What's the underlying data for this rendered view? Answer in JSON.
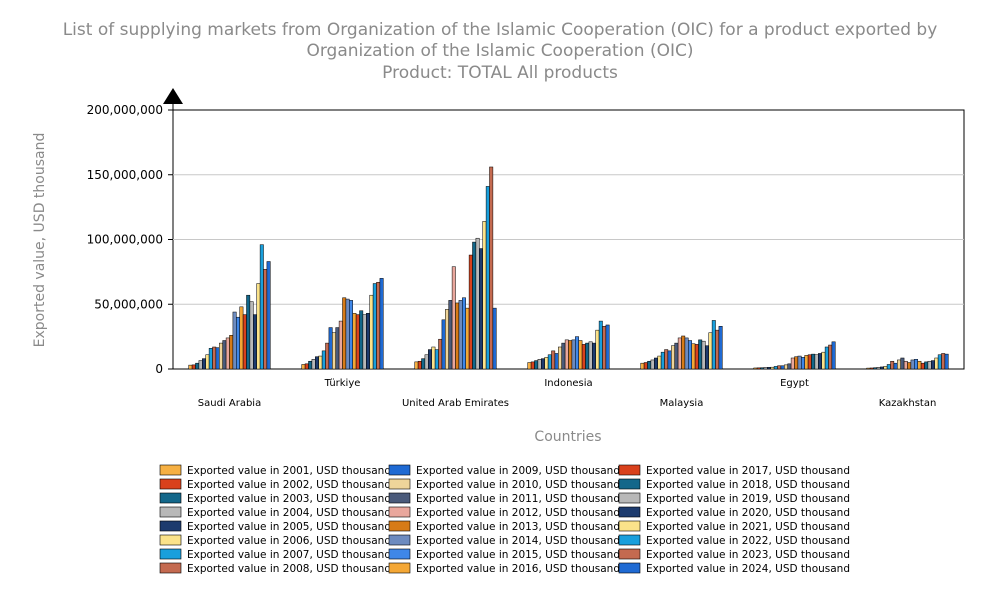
{
  "chart_data": {
    "type": "bar",
    "title_lines": [
      "List of supplying markets from Organization of the Islamic Cooperation (OIC) for a product exported by",
      "Organization of the Islamic Cooperation (OIC)",
      "Product: TOTAL All products"
    ],
    "xlabel": "Countries",
    "ylabel": "Exported value, USD thousand",
    "ylim": [
      0,
      200000000
    ],
    "yticks": [
      "0",
      "50,000,000",
      "100,000,000",
      "150,000,000",
      "200,000,000"
    ],
    "ytick_values": [
      0,
      50000000,
      100000000,
      150000000,
      200000000
    ],
    "grid": true,
    "legend_position": "bottom",
    "categories": [
      "Saudi Arabia",
      "Türkiye",
      "United Arab Emirates",
      "Indonesia",
      "Malaysia",
      "Egypt",
      "Kazakhstan"
    ],
    "series": [
      {
        "name": "Exported value in 2001, USD thousand",
        "color": "#f6b043",
        "values": [
          3000000,
          3500000,
          5500000,
          5000000,
          4500000,
          800000,
          700000
        ]
      },
      {
        "name": "Exported value in 2002, USD thousand",
        "color": "#d9411c",
        "values": [
          3200000,
          4000000,
          6000000,
          5500000,
          5000000,
          900000,
          800000
        ]
      },
      {
        "name": "Exported value in 2003, USD thousand",
        "color": "#13678a",
        "values": [
          4500000,
          6000000,
          8000000,
          6500000,
          6000000,
          1000000,
          1000000
        ]
      },
      {
        "name": "Exported value in 2004, USD thousand",
        "color": "#b8b8b8",
        "values": [
          6500000,
          7500000,
          11000000,
          7500000,
          7000000,
          1200000,
          1300000
        ]
      },
      {
        "name": "Exported value in 2005, USD thousand",
        "color": "#1d3b6e",
        "values": [
          8000000,
          9500000,
          15000000,
          8000000,
          8500000,
          1300000,
          1600000
        ]
      },
      {
        "name": "Exported value in 2006, USD thousand",
        "color": "#fbe38a",
        "values": [
          11000000,
          10000000,
          17000000,
          9000000,
          10000000,
          1400000,
          2000000
        ]
      },
      {
        "name": "Exported value in 2007, USD thousand",
        "color": "#199fdc",
        "values": [
          16000000,
          14000000,
          15000000,
          11000000,
          13000000,
          2000000,
          3500000
        ]
      },
      {
        "name": "Exported value in 2008, USD thousand",
        "color": "#c46a50",
        "values": [
          17000000,
          20000000,
          23000000,
          14000000,
          15000000,
          2500000,
          6000000
        ]
      },
      {
        "name": "Exported value in 2009, USD thousand",
        "color": "#1f6ad3",
        "values": [
          16500000,
          32000000,
          38000000,
          12000000,
          14000000,
          2500000,
          4500000
        ]
      },
      {
        "name": "Exported value in 2010, USD thousand",
        "color": "#efd59a",
        "values": [
          20000000,
          28000000,
          46000000,
          17000000,
          18000000,
          3200000,
          7000000
        ]
      },
      {
        "name": "Exported value in 2011, USD thousand",
        "color": "#4a5a7a",
        "values": [
          22000000,
          32000000,
          53000000,
          20000000,
          20000000,
          4000000,
          8500000
        ]
      },
      {
        "name": "Exported value in 2012, USD thousand",
        "color": "#e9a79d",
        "values": [
          24000000,
          37000000,
          79000000,
          22500000,
          24000000,
          8500000,
          6000000
        ]
      },
      {
        "name": "Exported value in 2013, USD thousand",
        "color": "#d77b17",
        "values": [
          26000000,
          55000000,
          51000000,
          22000000,
          25500000,
          9500000,
          5000000
        ]
      },
      {
        "name": "Exported value in 2014, USD thousand",
        "color": "#6d8bbf",
        "values": [
          44000000,
          54000000,
          53000000,
          22500000,
          24000000,
          10000000,
          7000000
        ]
      },
      {
        "name": "Exported value in 2015, USD thousand",
        "color": "#3f87e8",
        "values": [
          40000000,
          53000000,
          55000000,
          25000000,
          22000000,
          9000000,
          7500000
        ]
      },
      {
        "name": "Exported value in 2016, USD thousand",
        "color": "#f4a735",
        "values": [
          48000000,
          43000000,
          47000000,
          22000000,
          19500000,
          10500000,
          6000000
        ]
      },
      {
        "name": "Exported value in 2017, USD thousand",
        "color": "#d9411c",
        "values": [
          42000000,
          42000000,
          88000000,
          19000000,
          19000000,
          11000000,
          4500000
        ]
      },
      {
        "name": "Exported value in 2018, USD thousand",
        "color": "#13678a",
        "values": [
          57000000,
          45000000,
          98000000,
          20000000,
          22500000,
          11500000,
          5500000
        ]
      },
      {
        "name": "Exported value in 2019, USD thousand",
        "color": "#b8b8b8",
        "values": [
          52000000,
          42000000,
          101000000,
          21000000,
          21500000,
          11000000,
          6000000
        ]
      },
      {
        "name": "Exported value in 2020, USD thousand",
        "color": "#1d3b6e",
        "values": [
          42000000,
          43000000,
          93000000,
          20000000,
          18000000,
          12000000,
          6500000
        ]
      },
      {
        "name": "Exported value in 2021, USD thousand",
        "color": "#fbe38a",
        "values": [
          66000000,
          57000000,
          114000000,
          30000000,
          28000000,
          13000000,
          8500000
        ]
      },
      {
        "name": "Exported value in 2022, USD thousand",
        "color": "#199fdc",
        "values": [
          96000000,
          66000000,
          141000000,
          37000000,
          37500000,
          17000000,
          11000000
        ]
      },
      {
        "name": "Exported value in 2023, USD thousand",
        "color": "#c46a50",
        "values": [
          77000000,
          67000000,
          156000000,
          33000000,
          30000000,
          18500000,
          12000000
        ]
      },
      {
        "name": "Exported value in 2024, USD thousand",
        "color": "#1f6ad3",
        "values": [
          83000000,
          70000000,
          47000000,
          34000000,
          33000000,
          21000000,
          11500000
        ]
      }
    ]
  }
}
